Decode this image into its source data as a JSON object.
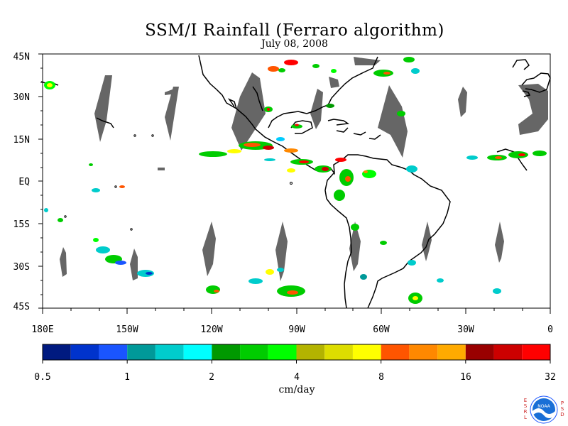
{
  "title": "SSM/I Rainfall (Ferraro algorithm)",
  "subtitle": "July 08, 2008",
  "lat_labels": [
    "45N",
    "30N",
    "15N",
    "EQ",
    "15S",
    "30S",
    "45S"
  ],
  "lon_labels": [
    "180E",
    "150W",
    "120W",
    "90W",
    "60W",
    "30W",
    "0"
  ],
  "units": "cm/day",
  "colorbar": {
    "colors": [
      "#001a80",
      "#0033cc",
      "#1a55ff",
      "#009999",
      "#00cccc",
      "#00ffff",
      "#009900",
      "#00cc00",
      "#00ff00",
      "#b3b300",
      "#dddd00",
      "#ffff00",
      "#ff5500",
      "#ff8800",
      "#ffaa00",
      "#990000",
      "#cc0000",
      "#ff0000"
    ],
    "tick_labels": [
      "0.5",
      "1",
      "2",
      "4",
      "8",
      "16",
      "32"
    ]
  },
  "logo": {
    "left_letters": [
      "E",
      "S",
      "R",
      "L"
    ],
    "right_letters": [
      "P",
      "S",
      "D"
    ],
    "badge": "NOAA"
  }
}
